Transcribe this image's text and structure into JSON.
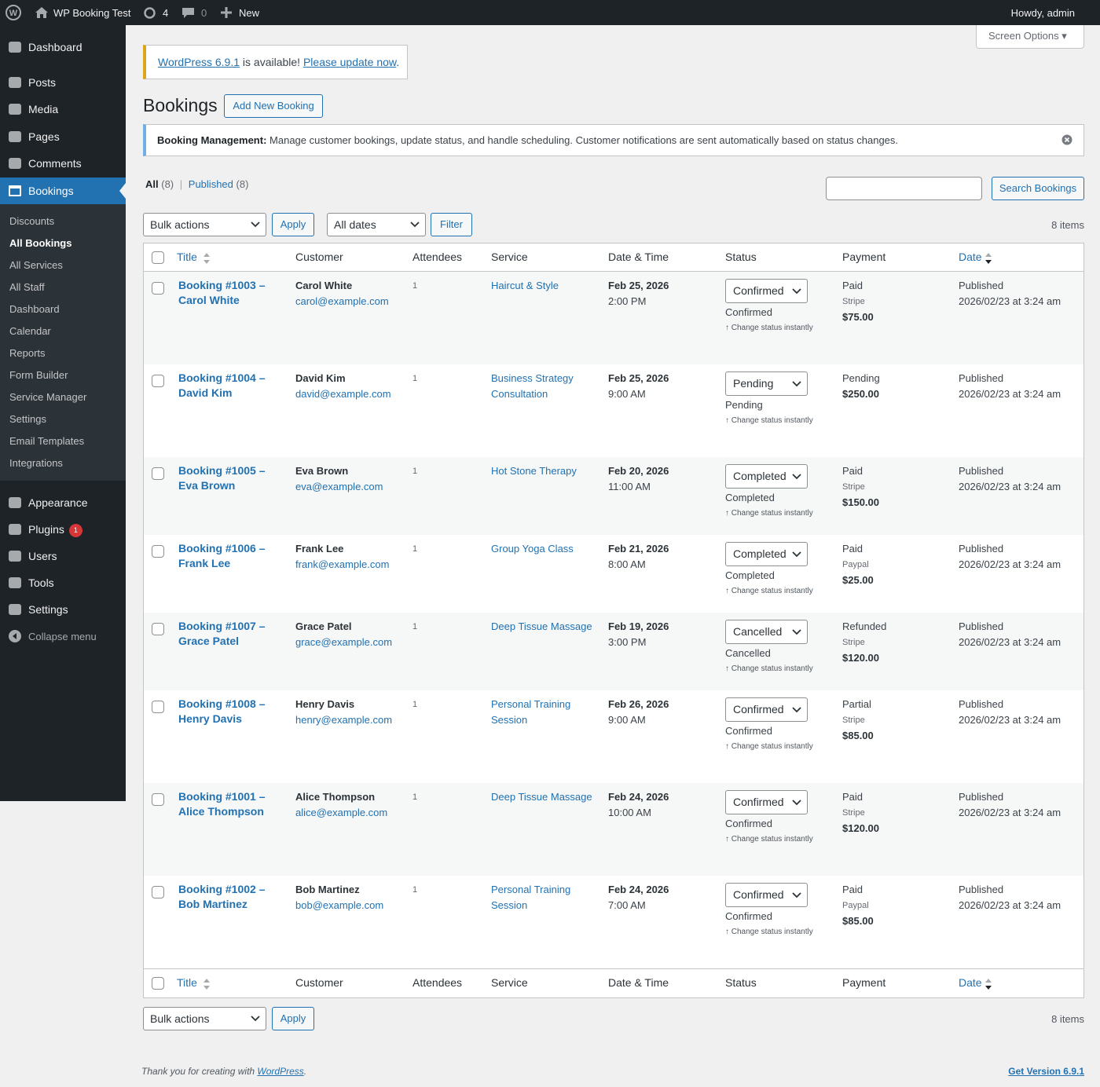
{
  "admin_bar": {
    "site": "WP Booking Test",
    "updates": "4",
    "comments": "0",
    "new": "New",
    "greeting": "Howdy, admin"
  },
  "menu": {
    "top": [
      "Dashboard",
      "Posts",
      "Media",
      "Pages",
      "Comments",
      "Bookings"
    ],
    "submenu": [
      "Discounts",
      "All Bookings",
      "All Services",
      "All Staff",
      "Dashboard",
      "Calendar",
      "Reports",
      "Form Builder",
      "Service Manager",
      "Settings",
      "Email Templates",
      "Integrations"
    ],
    "bottom": [
      "Appearance",
      "Plugins",
      "Users",
      "Tools",
      "Settings"
    ],
    "plugins_badge": "1",
    "collapse": "Collapse menu"
  },
  "screen_options": "Screen Options",
  "update_notice": {
    "version_link": "WordPress 6.9.1",
    "text": "is available!",
    "update_link": "Please update now",
    "end": "."
  },
  "heading": {
    "title": "Bookings",
    "add_new": "Add New Booking"
  },
  "info_notice": {
    "label": "Booking Management:",
    "text": "Manage customer bookings, update status, and handle scheduling. Customer notifications are sent automatically based on status changes."
  },
  "views": [
    {
      "label": "All",
      "count": "(8)"
    },
    {
      "label": "Published",
      "count": "(8)"
    }
  ],
  "search_button": "Search Bookings",
  "tablenav": {
    "bulk": "Bulk actions",
    "apply": "Apply",
    "dates": "All dates",
    "filter": "Filter",
    "items": "8 items"
  },
  "table": {
    "columns": [
      "Title",
      "Customer",
      "Attendees",
      "Service",
      "Date & Time",
      "Status",
      "Payment",
      "Date"
    ],
    "status_hint": "↑ Change status instantly",
    "rows": [
      {
        "title": "Booking #1003 – Carol White",
        "customer": "Carol White",
        "email": "carol@example.com",
        "attendees": 1,
        "service": "Haircut & Style",
        "date": "Feb 25, 2026",
        "time": "2:00 PM",
        "status": "Confirmed",
        "payment_status": "Paid",
        "payment_method": "Stripe",
        "amount": "$75.00",
        "post_status": "Published",
        "post_date": "2026/02/23 at 3:24 am"
      },
      {
        "title": "Booking #1004 – David Kim",
        "customer": "David Kim",
        "email": "david@example.com",
        "attendees": 1,
        "service": "Business Strategy Consultation",
        "date": "Feb 25, 2026",
        "time": "9:00 AM",
        "status": "Pending",
        "payment_status": "Pending",
        "amount": "$250.00",
        "post_status": "Published",
        "post_date": "2026/02/23 at 3:24 am"
      },
      {
        "title": "Booking #1005 – Eva Brown",
        "customer": "Eva Brown",
        "email": "eva@example.com",
        "attendees": 1,
        "service": "Hot Stone Therapy",
        "date": "Feb 20, 2026",
        "time": "11:00 AM",
        "status": "Completed",
        "payment_status": "Paid",
        "payment_method": "Stripe",
        "amount": "$150.00",
        "post_status": "Published",
        "post_date": "2026/02/23 at 3:24 am"
      },
      {
        "title": "Booking #1006 – Frank Lee",
        "customer": "Frank Lee",
        "email": "frank@example.com",
        "attendees": 1,
        "service": "Group Yoga Class",
        "date": "Feb 21, 2026",
        "time": "8:00 AM",
        "status": "Completed",
        "payment_status": "Paid",
        "payment_method": "Paypal",
        "amount": "$25.00",
        "post_status": "Published",
        "post_date": "2026/02/23 at 3:24 am"
      },
      {
        "title": "Booking #1007 – Grace Patel",
        "customer": "Grace Patel",
        "email": "grace@example.com",
        "attendees": 1,
        "service": "Deep Tissue Massage",
        "date": "Feb 19, 2026",
        "time": "3:00 PM",
        "status": "Cancelled",
        "payment_status": "Refunded",
        "payment_method": "Stripe",
        "amount": "$120.00",
        "post_status": "Published",
        "post_date": "2026/02/23 at 3:24 am"
      },
      {
        "title": "Booking #1008 – Henry Davis",
        "customer": "Henry Davis",
        "email": "henry@example.com",
        "attendees": 1,
        "service": "Personal Training Session",
        "date": "Feb 26, 2026",
        "time": "9:00 AM",
        "status": "Confirmed",
        "payment_status": "Partial",
        "payment_method": "Stripe",
        "amount": "$85.00",
        "post_status": "Published",
        "post_date": "2026/02/23 at 3:24 am"
      },
      {
        "title": "Booking #1001 – Alice Thompson",
        "customer": "Alice Thompson",
        "email": "alice@example.com",
        "attendees": 1,
        "service": "Deep Tissue Massage",
        "date": "Feb 24, 2026",
        "time": "10:00 AM",
        "status": "Confirmed",
        "payment_status": "Paid",
        "payment_method": "Stripe",
        "amount": "$120.00",
        "post_status": "Published",
        "post_date": "2026/02/23 at 3:24 am"
      },
      {
        "title": "Booking #1002 – Bob Martinez",
        "customer": "Bob Martinez",
        "email": "bob@example.com",
        "attendees": 1,
        "service": "Personal Training Session",
        "date": "Feb 24, 2026",
        "time": "7:00 AM",
        "status": "Confirmed",
        "payment_status": "Paid",
        "payment_method": "Paypal",
        "amount": "$85.00",
        "post_status": "Published",
        "post_date": "2026/02/23 at 3:24 am"
      }
    ]
  },
  "footer": {
    "thanks": "Thank you for creating with",
    "link": "WordPress",
    "end": ".",
    "version": "Get Version 6.9.1"
  }
}
